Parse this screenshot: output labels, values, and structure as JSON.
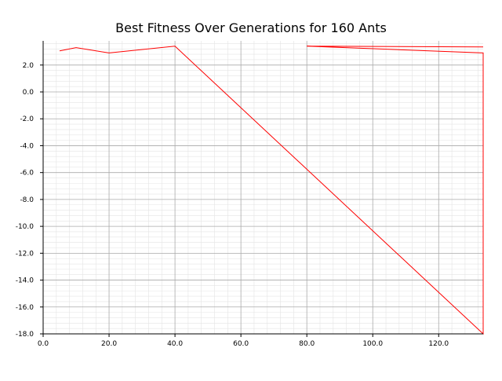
{
  "chart_data": {
    "type": "line",
    "title": "Best Fitness Over Generations for 160 Ants",
    "xlabel": "",
    "ylabel": "",
    "xlim": [
      0,
      133.5
    ],
    "ylim": [
      -18,
      3.8
    ],
    "x_ticks": [
      0,
      20,
      40,
      60,
      80,
      100,
      120
    ],
    "x_tick_labels": [
      "0.0",
      "20.0",
      "40.0",
      "60.0",
      "80.0",
      "100.0",
      "120.0"
    ],
    "y_ticks": [
      2,
      0,
      -2,
      -4,
      -6,
      -8,
      -10,
      -12,
      -14,
      -16,
      -18
    ],
    "y_tick_labels": [
      "2.0",
      "0.0",
      "-2.0",
      "-4.0",
      "-6.0",
      "-8.0",
      "-10.0",
      "-12.0",
      "-14.0",
      "-16.0",
      "-18.0"
    ],
    "grid": true,
    "minor_grid": true,
    "legend": false,
    "series": [
      {
        "color": "#ff0000",
        "x": [
          5,
          10,
          20,
          40,
          133.5,
          133.5,
          80,
          133.5
        ],
        "y": [
          3.05,
          3.3,
          2.9,
          3.4,
          -18.0,
          2.9,
          3.4,
          3.35
        ]
      }
    ]
  }
}
